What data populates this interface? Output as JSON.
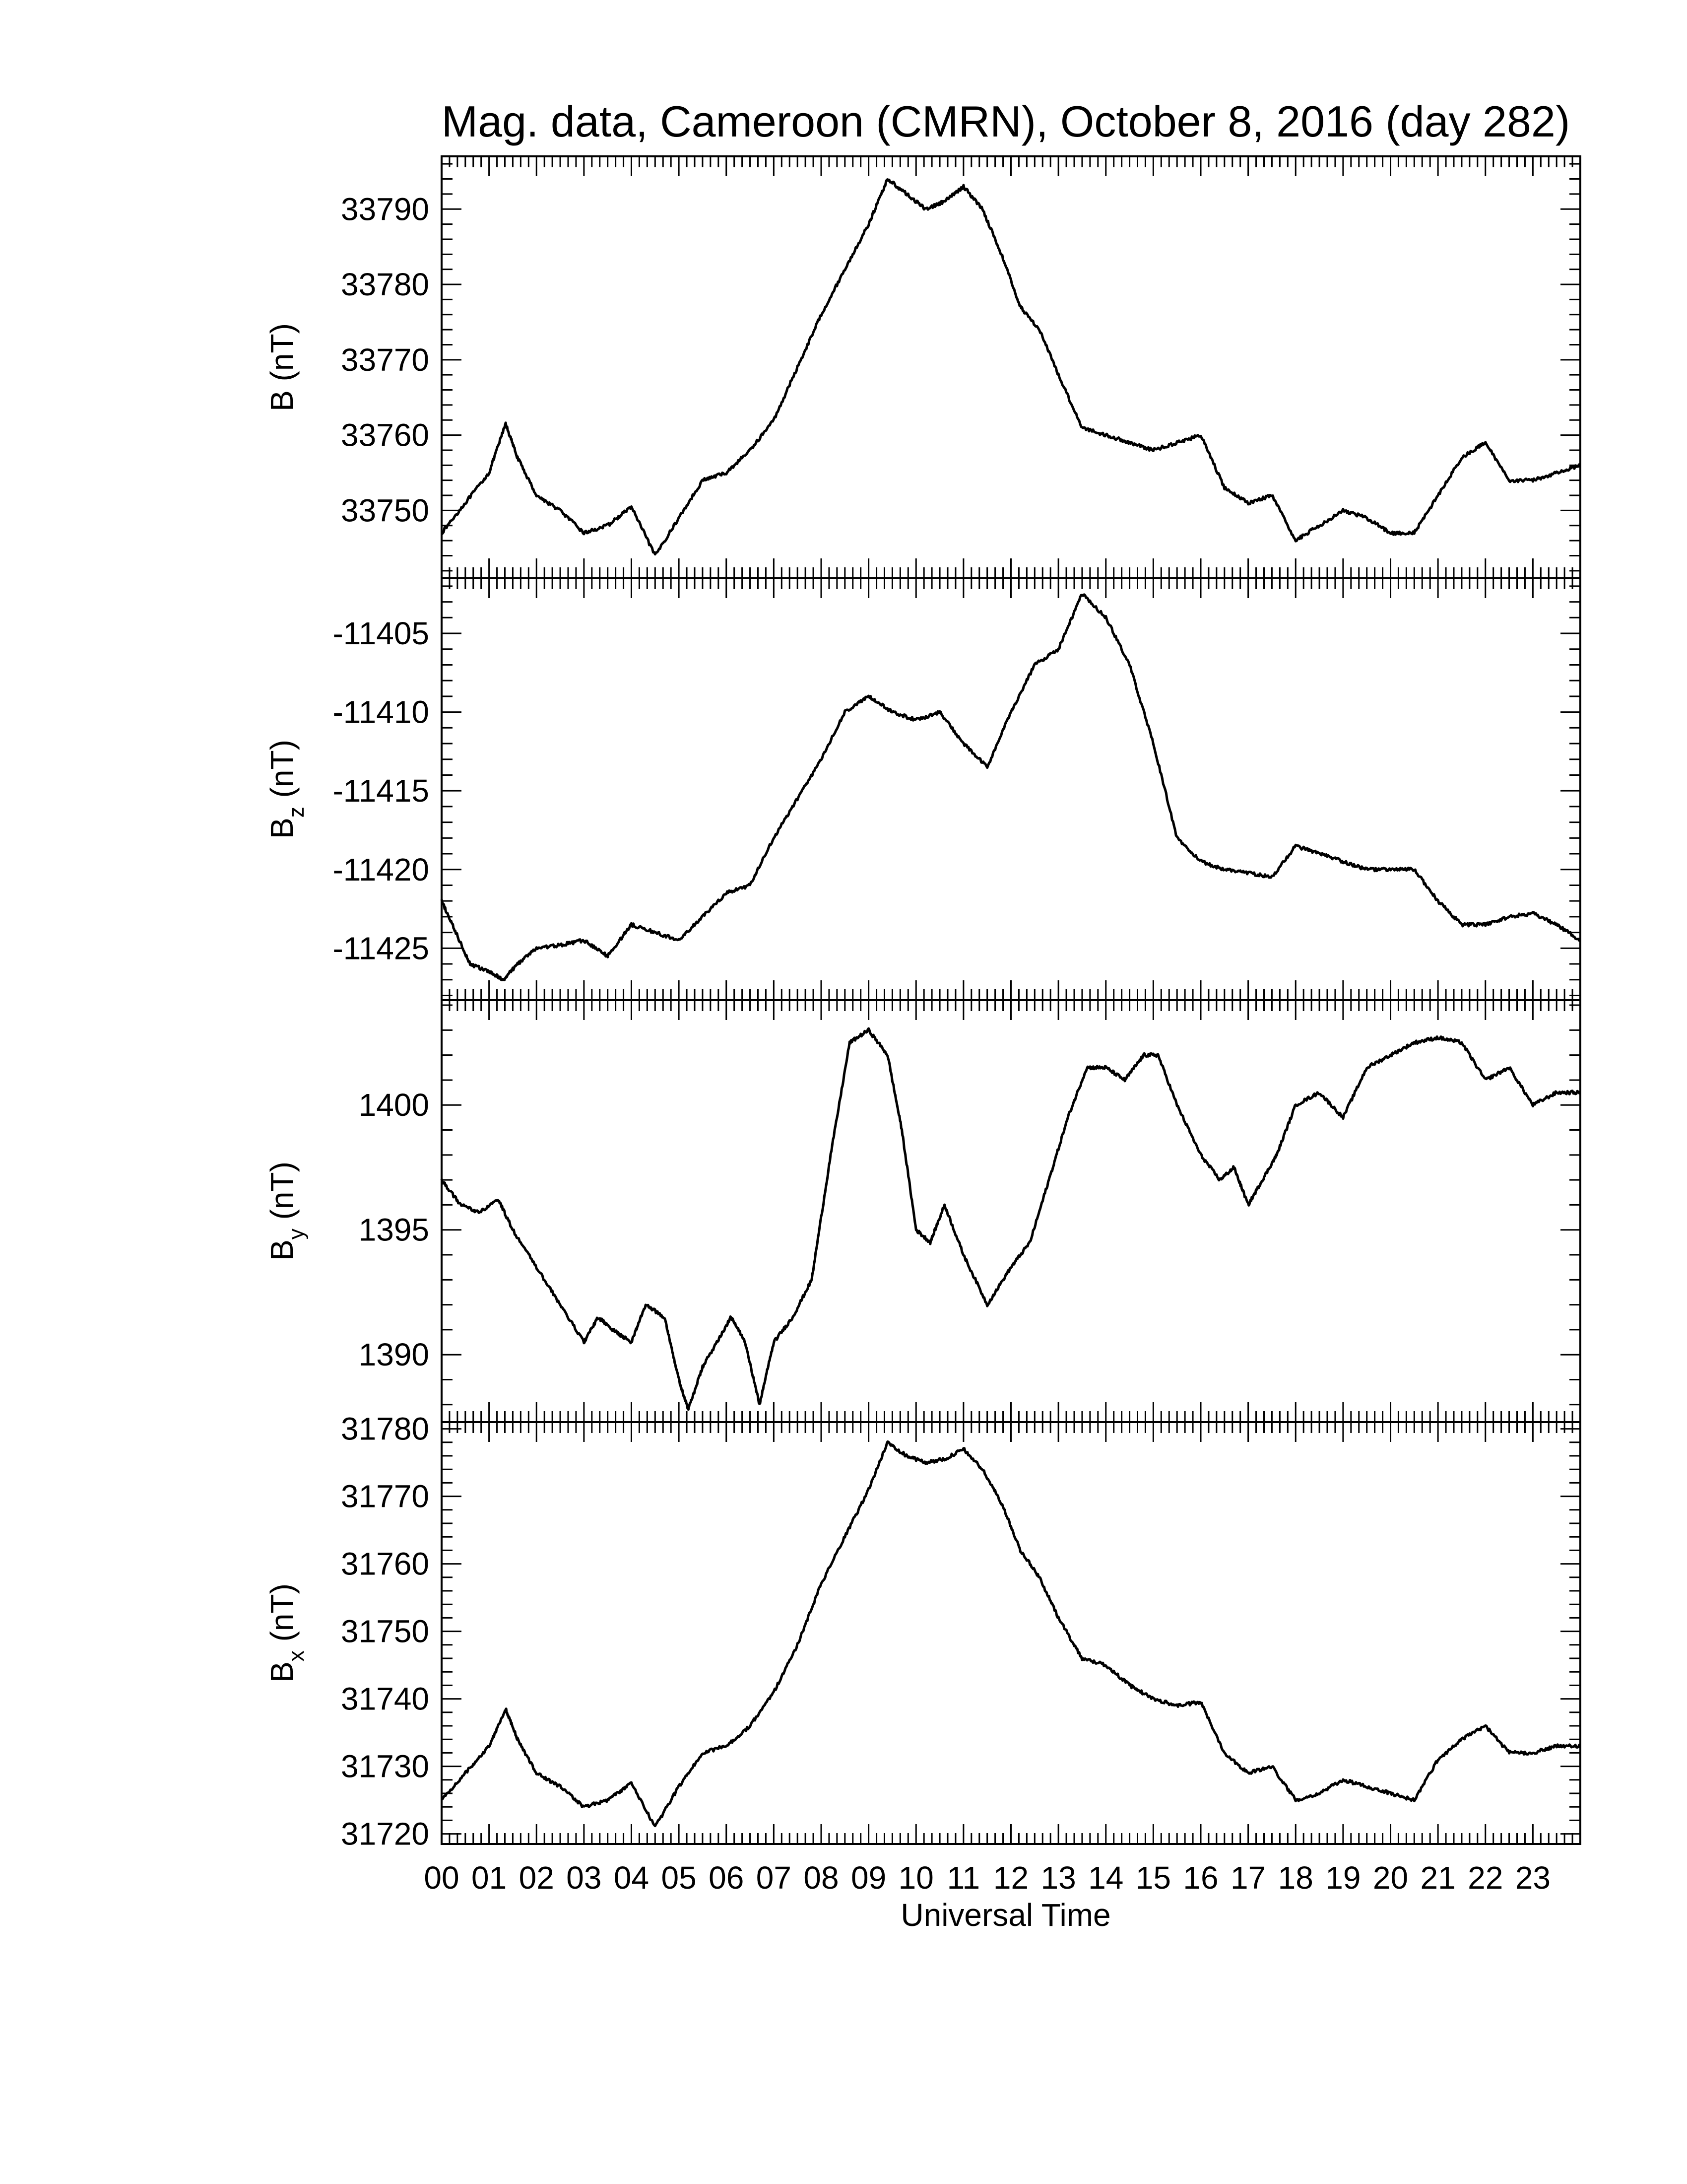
{
  "figure": {
    "title": "Mag. data, Cameroon (CMRN), October 8, 2016 (day 282)"
  },
  "chart_data": {
    "type": "line",
    "title": "Mag. data, Cameroon (CMRN), October 8, 2016 (day 282)",
    "xlabel": "Universal Time",
    "x_unit": "hours UT",
    "xlim": [
      0,
      24
    ],
    "x_ticks": [
      "00",
      "01",
      "02",
      "03",
      "04",
      "05",
      "06",
      "07",
      "08",
      "09",
      "10",
      "11",
      "12",
      "13",
      "14",
      "15",
      "16",
      "17",
      "18",
      "19",
      "20",
      "21",
      "22",
      "23"
    ],
    "grid": false,
    "legend": "none",
    "panels": [
      {
        "id": "B",
        "ylabel_main": "B",
        "ylabel_sub": "",
        "ylabel_unit": " (nT)",
        "ylim": [
          33741,
          33797
        ],
        "yticks": [
          33750,
          33760,
          33770,
          33780,
          33790
        ],
        "series": [
          {
            "x": [
              0,
              0.5,
              1,
              1.35,
              1.6,
              2,
              2.5,
              3,
              3.5,
              4,
              4.5,
              5,
              5.5,
              6,
              6.5,
              7,
              7.5,
              8,
              8.5,
              9,
              9.4,
              9.8,
              10.2,
              10.6,
              11,
              11.4,
              11.8,
              12.2,
              12.6,
              13,
              13.5,
              14,
              14.5,
              15,
              15.5,
              16,
              16.5,
              17,
              17.5,
              18,
              18.5,
              19,
              19.5,
              20,
              20.5,
              21,
              21.5,
              22,
              22.5,
              23,
              23.5,
              24
            ],
            "y": [
              33747,
              33751,
              33755,
              33761.5,
              33757,
              33752,
              33750,
              33747,
              33748,
              33750.5,
              33744,
              33749,
              33754,
              33755,
              33758,
              33762,
              33769,
              33776,
              33782,
              33788,
              33794,
              33792,
              33790,
              33791,
              33793,
              33790,
              33784,
              33777,
              33774,
              33768,
              33761,
              33760,
              33759,
              33758,
              33759,
              33760,
              33753,
              33751,
              33752,
              33746,
              33748,
              33750,
              33749,
              33747,
              33747,
              33752,
              33757,
              33759,
              33754,
              33754,
              33755,
              33756
            ]
          }
        ]
      },
      {
        "id": "Bz",
        "ylabel_main": "B",
        "ylabel_sub": "z",
        "ylabel_unit": " (nT)",
        "ylim": [
          -11428.3,
          -11401.5
        ],
        "yticks": [
          -11425,
          -11420,
          -11415,
          -11410,
          -11405
        ],
        "series": [
          {
            "x": [
              0,
              0.3,
              0.6,
              1,
              1.3,
              1.6,
              2,
              2.5,
              3,
              3.5,
              4,
              4.5,
              5,
              5.5,
              6,
              6.5,
              7,
              7.5,
              8,
              8.5,
              9,
              9.5,
              10,
              10.5,
              11,
              11.5,
              12,
              12.5,
              13,
              13.5,
              14,
              14.5,
              15,
              15.5,
              16,
              16.5,
              17,
              17.5,
              18,
              18.5,
              19,
              19.5,
              20,
              20.5,
              21,
              21.5,
              22,
              22.5,
              23,
              23.5,
              24
            ],
            "y": [
              -11422,
              -11424,
              -11426,
              -11426.5,
              -11427,
              -11426,
              -11425,
              -11424.8,
              -11424.5,
              -11425.5,
              -11423.5,
              -11424,
              -11424.5,
              -11423,
              -11421.5,
              -11421,
              -11418,
              -11415.5,
              -11413,
              -11410,
              -11409,
              -11410,
              -11410.5,
              -11410,
              -11412,
              -11413.5,
              -11410,
              -11407,
              -11406,
              -11402.5,
              -11404,
              -11407,
              -11412,
              -11418,
              -11419.5,
              -11420,
              -11420.2,
              -11420.5,
              -11418.5,
              -11419,
              -11419.5,
              -11420,
              -11420,
              -11420,
              -11422,
              -11423.5,
              -11423.5,
              -11423,
              -11422.8,
              -11423.5,
              -11424.5
            ]
          }
        ]
      },
      {
        "id": "By",
        "ylabel_main": "B",
        "ylabel_sub": "y",
        "ylabel_unit": " (nT)",
        "ylim": [
          1387.3,
          1404.2
        ],
        "yticks": [
          1390,
          1395,
          1400
        ],
        "series": [
          {
            "x": [
              0,
              0.4,
              0.8,
              1.2,
              1.5,
              2,
              2.5,
              3,
              3.3,
              3.6,
              4,
              4.3,
              4.7,
              5,
              5.2,
              5.5,
              5.8,
              6.1,
              6.4,
              6.7,
              7,
              7.4,
              7.8,
              8.2,
              8.6,
              9,
              9.4,
              9.7,
              10,
              10.3,
              10.6,
              11,
              11.5,
              12,
              12.4,
              12.8,
              13.2,
              13.6,
              14,
              14.4,
              14.8,
              15.1,
              15.5,
              16,
              16.4,
              16.7,
              17,
              17.3,
              17.6,
              18,
              18.5,
              19,
              19.5,
              20,
              20.5,
              21,
              21.5,
              22,
              22.5,
              23,
              23.5,
              24
            ],
            "y": [
              1397,
              1396,
              1395.7,
              1396.2,
              1395,
              1393.5,
              1392,
              1390.5,
              1391.5,
              1391,
              1390.5,
              1392,
              1391.5,
              1389,
              1387.8,
              1389.5,
              1390.5,
              1391.5,
              1390.5,
              1388,
              1390.5,
              1391.5,
              1393,
              1398,
              1402.5,
              1403,
              1402,
              1399,
              1395,
              1394.5,
              1396,
              1394,
              1392,
              1393.5,
              1394.5,
              1397,
              1399.5,
              1401.5,
              1401.5,
              1401,
              1402,
              1402,
              1400,
              1398,
              1397,
              1397.5,
              1396,
              1397,
              1398,
              1400,
              1400.5,
              1399.5,
              1401.5,
              1402,
              1402.5,
              1402.7,
              1402.5,
              1401,
              1401.5,
              1400,
              1400.5,
              1400.5
            ]
          }
        ]
      },
      {
        "id": "Bx",
        "ylabel_main": "B",
        "ylabel_sub": "x",
        "ylabel_unit": " (nT)",
        "ylim": [
          31718.5,
          31781
        ],
        "yticks": [
          31720,
          31730,
          31740,
          31750,
          31760,
          31770,
          31780
        ],
        "series": [
          {
            "x": [
              0,
              0.5,
              1,
              1.35,
              1.6,
              2,
              2.5,
              3,
              3.5,
              4,
              4.5,
              5,
              5.5,
              6,
              6.5,
              7,
              7.5,
              8,
              8.5,
              9,
              9.4,
              9.8,
              10.2,
              10.6,
              11,
              11.4,
              11.8,
              12.2,
              12.6,
              13,
              13.5,
              14,
              14.5,
              15,
              15.5,
              16,
              16.5,
              17,
              17.5,
              18,
              18.5,
              19,
              19.5,
              20,
              20.5,
              21,
              21.5,
              22,
              22.5,
              23,
              23.5,
              24
            ],
            "y": [
              31725,
              31729,
              31733,
              31738.5,
              31734,
              31729,
              31727,
              31724,
              31725,
              31727.5,
              31721,
              31727,
              31732,
              31733,
              31736,
              31741,
              31748,
              31757,
              31764,
              31771,
              31778,
              31776,
              31775,
              31775.5,
              31777,
              31774,
              31769,
              31762,
              31758,
              31752,
              31746,
              31745,
              31742,
              31740,
              31739,
              31739.5,
              31732,
              31729,
              31730,
              31725,
              31726,
              31728,
              31727,
              31726,
              31725,
              31731,
              31734,
              31736,
              31732,
              31732,
              31733,
              31733
            ]
          }
        ]
      }
    ]
  }
}
